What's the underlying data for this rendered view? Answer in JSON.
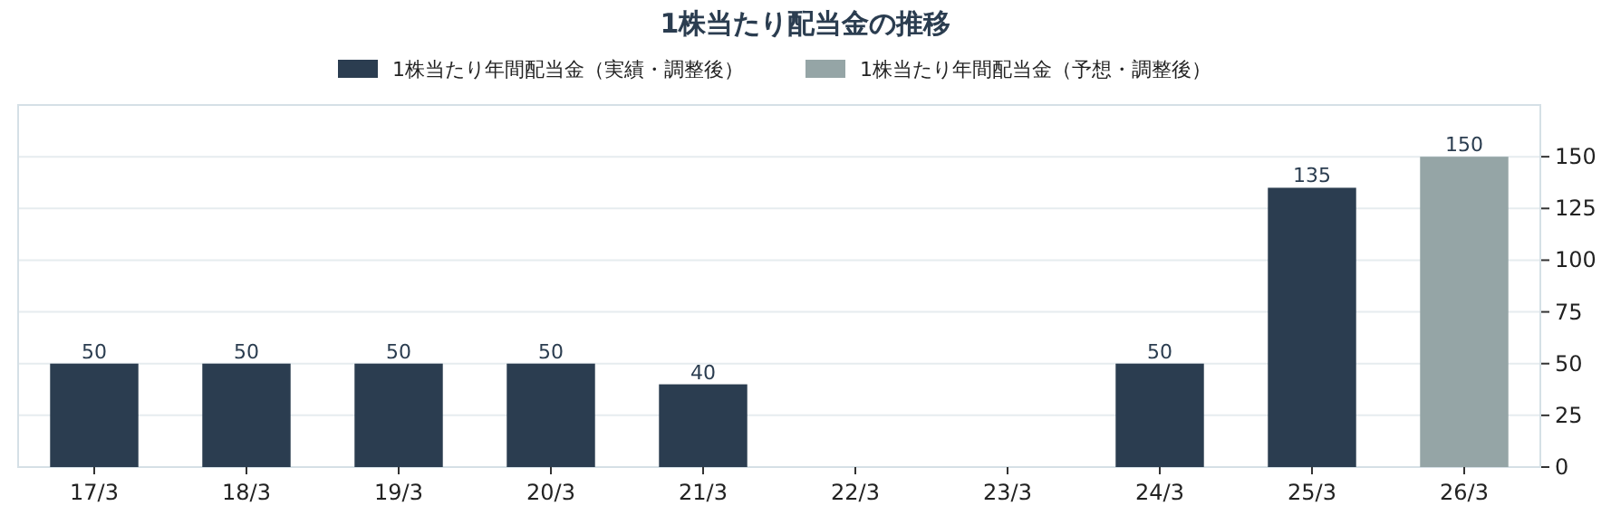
{
  "chart_data": {
    "type": "bar",
    "title": "1株当たり配当金の推移",
    "categories": [
      "17/3",
      "18/3",
      "19/3",
      "20/3",
      "21/3",
      "22/3",
      "23/3",
      "24/3",
      "25/3",
      "26/3"
    ],
    "series": [
      {
        "name": "1株当たり年間配当金（実績・調整後）",
        "color": "#2b3d50",
        "values": [
          50,
          50,
          50,
          50,
          40,
          null,
          null,
          50,
          135,
          null
        ]
      },
      {
        "name": "1株当たり年間配当金（予想・調整後）",
        "color": "#95a5a6",
        "values": [
          null,
          null,
          null,
          null,
          null,
          null,
          null,
          null,
          null,
          150
        ]
      }
    ],
    "ylim": [
      0,
      175
    ],
    "yticks": [
      0,
      25,
      50,
      75,
      100,
      125,
      150
    ],
    "grid": "y",
    "legend": "top",
    "data_labels": true
  }
}
